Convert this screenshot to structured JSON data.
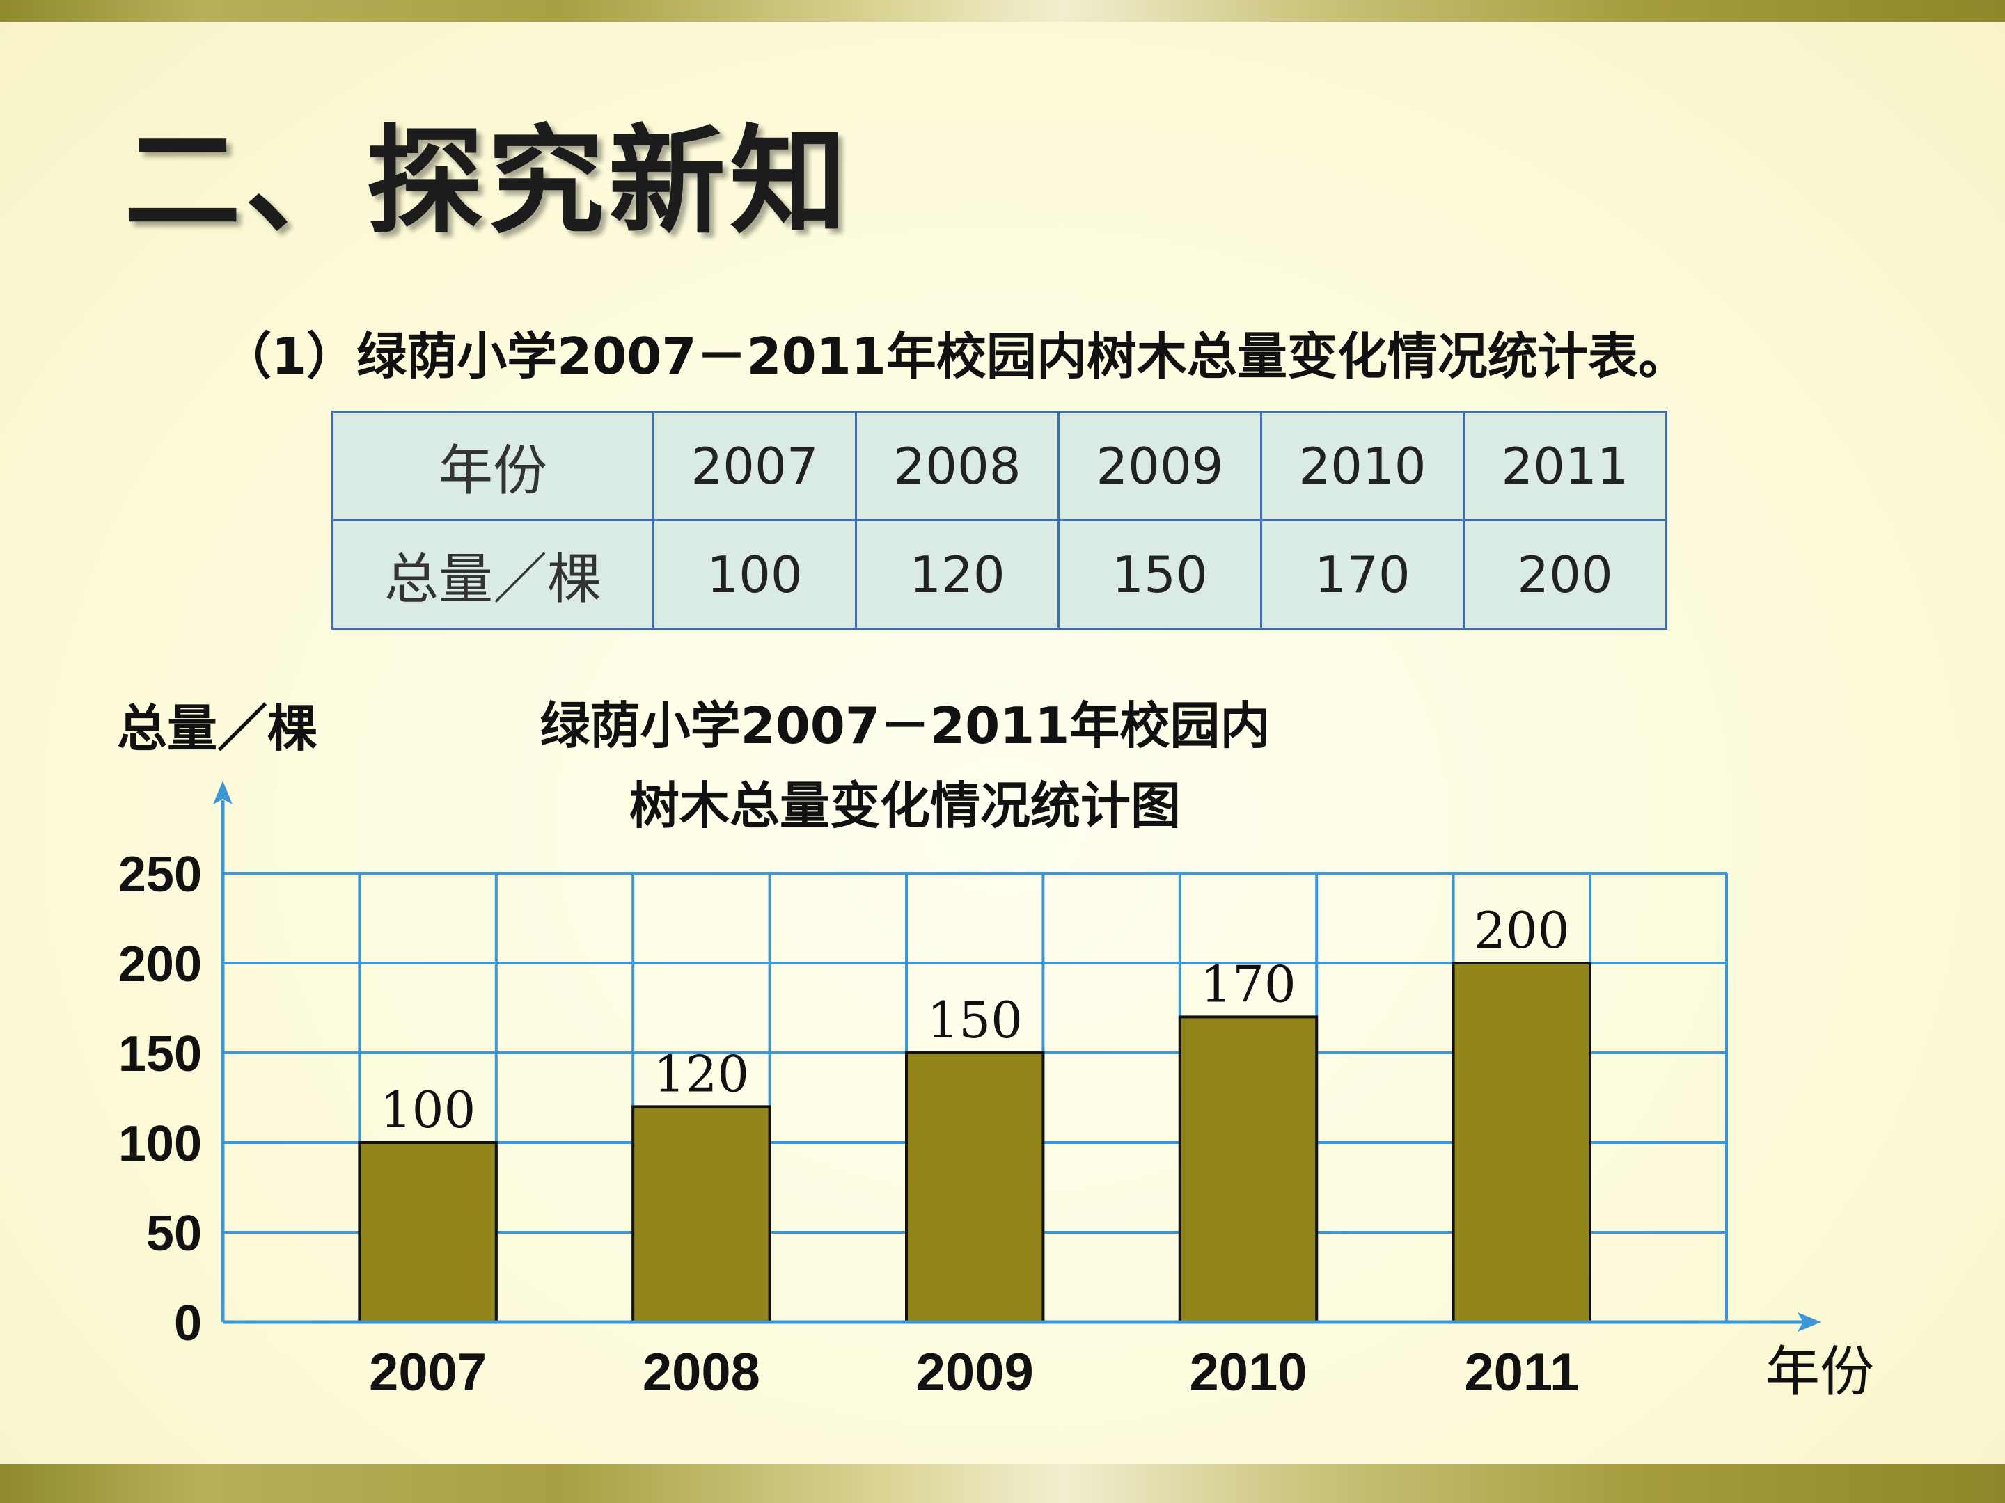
{
  "page": {
    "title": "二、探究新知",
    "subtitle": "（1）绿荫小学2007－2011年校园内树木总量变化情况统计表。"
  },
  "table": {
    "row_header": "年份",
    "value_header": "总量／棵",
    "years": [
      "2007",
      "2008",
      "2009",
      "2010",
      "2011"
    ],
    "totals": [
      "100",
      "120",
      "150",
      "170",
      "200"
    ]
  },
  "chart_data": {
    "type": "bar",
    "title_line1": "绿荫小学2007－2011年校园内",
    "title_line2": "树木总量变化情况统计图",
    "ylabel": "总量／棵",
    "xlabel": "年份",
    "categories": [
      "2007",
      "2008",
      "2009",
      "2010",
      "2011"
    ],
    "values": [
      100,
      120,
      150,
      170,
      200
    ],
    "value_labels": [
      "100",
      "120",
      "150",
      "170",
      "200"
    ],
    "yticks": [
      0,
      50,
      100,
      150,
      200,
      250
    ],
    "ylim": [
      0,
      250
    ],
    "grid": true,
    "colors": {
      "bar": "#918419",
      "grid": "#3a96d8",
      "axis": "#3a96d8"
    }
  }
}
